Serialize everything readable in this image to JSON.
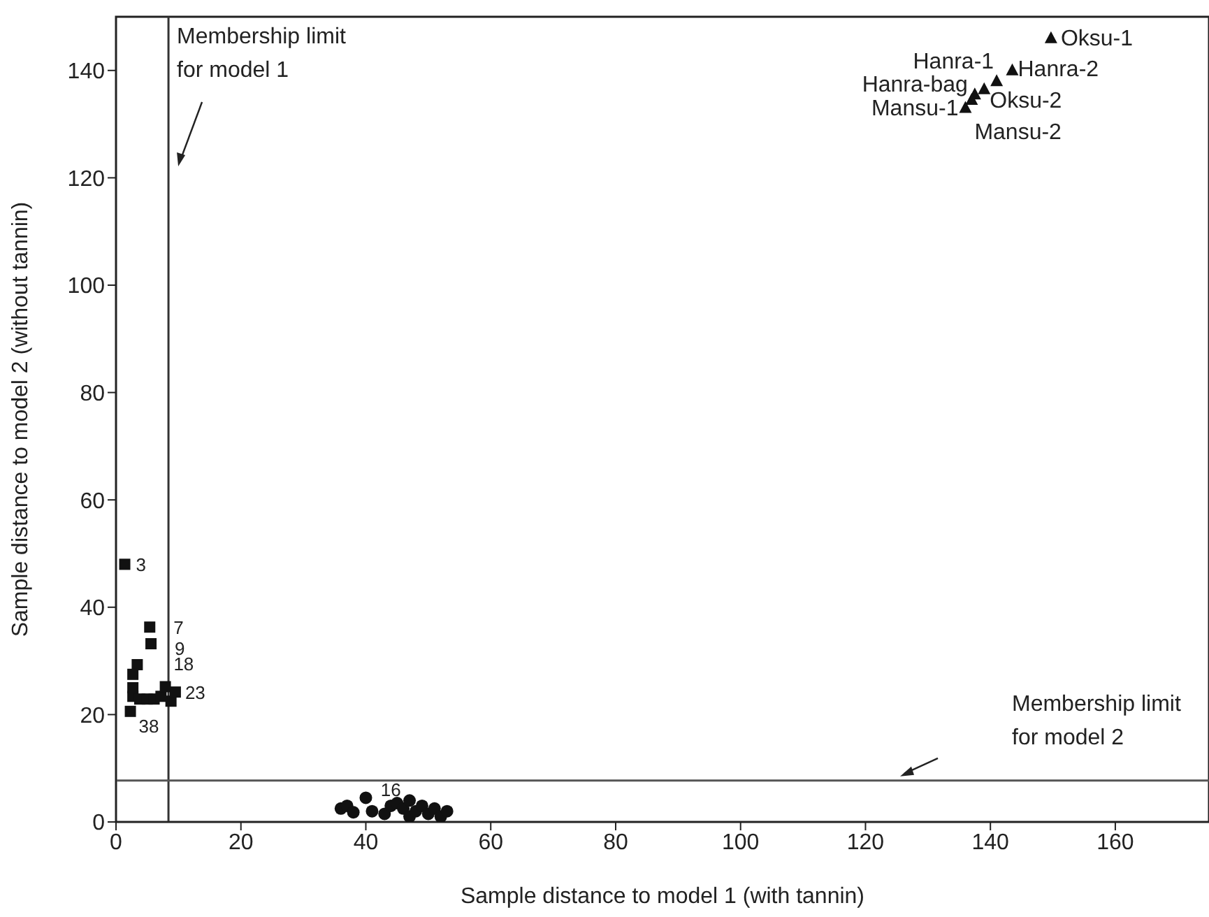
{
  "chart_data": {
    "type": "scatter",
    "xlabel": "Sample distance to model 1 (with tannin)",
    "ylabel": "Sample distance to model 2 (without tannin)",
    "xlim": [
      0,
      175
    ],
    "xticks": [
      0,
      20,
      40,
      60,
      80,
      100,
      120,
      140,
      160
    ],
    "ylim": [
      0,
      150
    ],
    "yticks": [
      0,
      20,
      40,
      60,
      80,
      100,
      120,
      140
    ],
    "series": [
      {
        "marker": "square",
        "color": "#111111",
        "x": [
          1.4,
          5.4,
          5.6,
          3.4,
          2.7,
          2.7,
          2.7,
          3.8,
          5,
          6.1,
          7.2,
          8.8,
          9.5,
          2.3,
          7.9
        ],
        "values": [
          48,
          36.3,
          33.2,
          29.3,
          27.5,
          25,
          23.4,
          22.9,
          22.9,
          22.9,
          23.4,
          22.5,
          24.2,
          20.6,
          25.2
        ]
      },
      {
        "marker": "circle",
        "color": "#111111",
        "x": [
          36,
          37,
          38,
          40,
          41,
          43,
          44,
          45,
          46,
          47,
          47,
          48,
          49,
          50,
          51,
          52,
          53
        ],
        "values": [
          2.5,
          3,
          1.8,
          4.5,
          2,
          1.5,
          3,
          3.5,
          2.5,
          1,
          4,
          2,
          3,
          1.5,
          2.5,
          1,
          2
        ]
      },
      {
        "marker": "triangle",
        "color": "#111111",
        "x": [
          149.7,
          143.5,
          141,
          139,
          137.5,
          137,
          136
        ],
        "values": [
          146,
          140,
          138,
          136.5,
          135.5,
          134.5,
          133
        ]
      }
    ],
    "annotations": [
      {
        "text": "3",
        "x": 1.4,
        "y": 48
      },
      {
        "text": "7",
        "x": 5.4,
        "y": 36.3
      },
      {
        "text": "9",
        "x": 5.6,
        "y": 33.2
      },
      {
        "text": "18",
        "x": 3.4,
        "y": 29.3
      },
      {
        "text": "23",
        "x": 9.5,
        "y": 24.2
      },
      {
        "text": "38",
        "x": 2.3,
        "y": 20.6
      },
      {
        "text": "16",
        "x": 44,
        "y": 3
      },
      {
        "text": "Oksu-1",
        "x": 149.7,
        "y": 146
      },
      {
        "text": "Hanra-2",
        "x": 143.5,
        "y": 140
      },
      {
        "text": "Hanra-1",
        "x": 141,
        "y": 138
      },
      {
        "text": "Oksu-2",
        "x": 139,
        "y": 136.5
      },
      {
        "text": "Hanra-bag",
        "x": 137.5,
        "y": 135.5
      },
      {
        "text": "Mansu-2",
        "x": 137,
        "y": 134.5
      },
      {
        "text": "Mansu-1",
        "x": 136,
        "y": 133
      }
    ],
    "ref_lines": [
      {
        "axis": "x",
        "value": 8.4,
        "label": "Membership limit\nfor model 1",
        "color": "#333333"
      },
      {
        "axis": "y",
        "value": 7.7,
        "label": "Membership limit\nfor model 2",
        "color": "#555555"
      }
    ]
  }
}
